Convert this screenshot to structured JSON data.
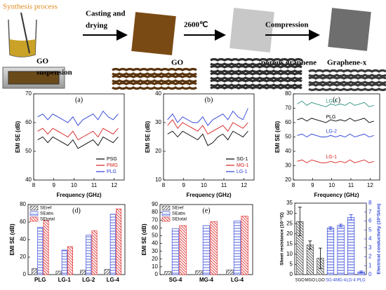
{
  "diagram": {
    "title": "Synthesis process",
    "casting_1": "Casting and",
    "casting_2": "drying",
    "suspension_1": "GO",
    "suspension_2": "suspension",
    "go": "GO",
    "temperature": "2600℃",
    "porous": "porous graphene",
    "compression": "Compression",
    "product": "Graphene-x"
  },
  "chart_data": [
    {
      "type": "line",
      "panel": "(a)",
      "xlabel": "Frequency (GHz)",
      "ylabel": "EMI SE (dB)",
      "legend": "lower right",
      "x": [
        8.2,
        8.45,
        8.7,
        8.95,
        9.2,
        9.45,
        9.7,
        9.95,
        10.2,
        10.45,
        10.7,
        10.95,
        11.2,
        11.45,
        11.7,
        11.95,
        12.2
      ],
      "xlim": [
        8,
        12.5
      ],
      "xticks": [
        8,
        9,
        10,
        11,
        12
      ],
      "ylim": [
        40,
        70
      ],
      "yticks": [
        40,
        50,
        60,
        70
      ],
      "series": [
        {
          "name": "PSG",
          "color": "#000000",
          "values": [
            54,
            55,
            53,
            55,
            54,
            53,
            52,
            54,
            51,
            52,
            53,
            54,
            52,
            55,
            54,
            53,
            55
          ]
        },
        {
          "name": "PMG",
          "color": "#d62020",
          "values": [
            57,
            58,
            56,
            58,
            57,
            56,
            55,
            57,
            54,
            55,
            56,
            57,
            55,
            58,
            57,
            56,
            58
          ]
        },
        {
          "name": "PLG",
          "color": "#2a3fd6",
          "values": [
            62,
            63,
            61,
            63,
            62,
            61,
            60,
            62,
            59,
            61,
            62,
            63,
            61,
            64,
            62,
            61,
            63
          ]
        }
      ]
    },
    {
      "type": "line",
      "panel": "(b)",
      "xlabel": "Frequency (GHz)",
      "ylabel": "EMI SE (dB)",
      "legend": "lower right",
      "x": [
        8.2,
        8.45,
        8.7,
        8.95,
        9.2,
        9.45,
        9.7,
        9.95,
        10.2,
        10.45,
        10.7,
        10.95,
        11.2,
        11.45,
        11.7,
        11.95,
        12.2
      ],
      "xlim": [
        8,
        12.5
      ],
      "xticks": [
        8,
        9,
        10,
        11,
        12
      ],
      "ylim": [
        10,
        40
      ],
      "yticks": [
        10,
        20,
        30,
        40
      ],
      "series": [
        {
          "name": "SG-1",
          "color": "#000000",
          "values": [
            26,
            27,
            25,
            27,
            26,
            25,
            24,
            26,
            22,
            23,
            25,
            26,
            24,
            27,
            26,
            25,
            27
          ]
        },
        {
          "name": "MG-1",
          "color": "#d62020",
          "values": [
            29,
            31,
            28,
            30,
            29,
            28,
            27,
            29,
            26,
            27,
            28,
            29,
            27,
            30,
            29,
            28,
            30
          ]
        },
        {
          "name": "LG-1",
          "color": "#2a3fd6",
          "values": [
            31,
            33,
            30,
            32,
            31,
            30,
            30,
            32,
            29,
            31,
            32,
            33,
            31,
            34,
            32,
            31,
            35
          ]
        }
      ]
    },
    {
      "type": "line",
      "panel": "(c)",
      "xlabel": "Frequency (GHz)",
      "ylabel": "EMI SE (dB)",
      "legend": "inline",
      "x": [
        8.2,
        8.45,
        8.7,
        8.95,
        9.2,
        9.45,
        9.7,
        9.95,
        10.2,
        10.45,
        10.7,
        10.95,
        11.2,
        11.45,
        11.7,
        11.95,
        12.2
      ],
      "xlim": [
        8,
        12.5
      ],
      "xticks": [
        8,
        9,
        10,
        11,
        12
      ],
      "ylim": [
        20,
        80
      ],
      "yticks": [
        20,
        30,
        40,
        50,
        60,
        70,
        80
      ],
      "series": [
        {
          "name": "LG-4",
          "color": "#2f8f7f",
          "values": [
            73,
            75,
            72,
            74,
            73,
            72,
            71,
            73,
            72,
            73,
            72,
            74,
            72,
            73,
            74,
            71,
            72
          ]
        },
        {
          "name": "PLG",
          "color": "#000000",
          "values": [
            62,
            63,
            61,
            63,
            62,
            61,
            60,
            62,
            61,
            62,
            61,
            63,
            61,
            62,
            63,
            60,
            61
          ]
        },
        {
          "name": "LG-2",
          "color": "#2a3fd6",
          "values": [
            51,
            52,
            50,
            52,
            51,
            50,
            50,
            51,
            50,
            51,
            50,
            52,
            50,
            51,
            52,
            50,
            51
          ]
        },
        {
          "name": "LG-1",
          "color": "#d62020",
          "values": [
            33,
            34,
            32,
            34,
            33,
            32,
            32,
            33,
            32,
            33,
            32,
            34,
            32,
            33,
            34,
            32,
            33
          ]
        }
      ]
    },
    {
      "type": "bar",
      "panel": "(d)",
      "ylabel": "EMI SE (dB)",
      "legend": "upper left",
      "categories": [
        "PLG",
        "LG-1",
        "LG-2",
        "LG-4"
      ],
      "ylim": [
        0,
        80
      ],
      "yticks": [
        0,
        20,
        40,
        60,
        80
      ],
      "series": [
        {
          "name": "SEref",
          "color": "#555555",
          "hatch": "/",
          "values": [
            7,
            4,
            5,
            6
          ]
        },
        {
          "name": "SEabs",
          "color": "#3c4fd8",
          "hatch": "-",
          "values": [
            54,
            28,
            45,
            69
          ]
        },
        {
          "name": "SEtotal",
          "color": "#e03030",
          "hatch": "\\",
          "values": [
            62,
            32,
            50,
            75
          ]
        }
      ]
    },
    {
      "type": "bar",
      "panel": "(e)",
      "ylabel": "EMI SE (dB)",
      "legend": "upper left",
      "categories": [
        "SG-4",
        "MG-4",
        "LG-4"
      ],
      "ylim": [
        0,
        90
      ],
      "yticks": [
        0,
        10,
        20,
        30,
        40,
        50,
        60,
        70,
        80,
        90
      ],
      "series": [
        {
          "name": "SEref",
          "color": "#555555",
          "hatch": "/",
          "values": [
            4,
            5,
            6
          ]
        },
        {
          "name": "SEabs",
          "color": "#3c4fd8",
          "hatch": "-",
          "values": [
            59,
            63,
            69
          ]
        },
        {
          "name": "SEtotal",
          "color": "#e03030",
          "hatch": "\\",
          "values": [
            63,
            68,
            75
          ]
        }
      ]
    },
    {
      "type": "bar",
      "panel": "(f)",
      "ylabel": "Sheet resistance (10⁻²Ω)",
      "y2label": "Electrical conductivity (10⁵S/cm)",
      "categories": [
        "SGO",
        "MGO",
        "LGO",
        "SG-4",
        "MG-4",
        "LG-4",
        "PLG"
      ],
      "ylim": [
        0,
        35
      ],
      "yticks": [
        0,
        5,
        10,
        15,
        20,
        25,
        30,
        35
      ],
      "y2lim": [
        0,
        8
      ],
      "y2ticks": [
        0,
        1,
        2,
        3,
        4,
        5,
        6,
        7,
        8
      ],
      "series": [
        {
          "color": "#444444",
          "hatch": "\\",
          "values": [
            26,
            14.5,
            8,
            null,
            null,
            null,
            null
          ],
          "errors": [
            7,
            2,
            5,
            null,
            null,
            null,
            null
          ]
        },
        {
          "color": "#2a3fd6",
          "hatch": "-",
          "axis": "y2",
          "values": [
            null,
            null,
            null,
            5.2,
            5.5,
            6.4,
            0.3
          ],
          "errors": [
            null,
            null,
            null,
            0.15,
            0.15,
            0.3,
            0.1
          ]
        }
      ]
    }
  ]
}
